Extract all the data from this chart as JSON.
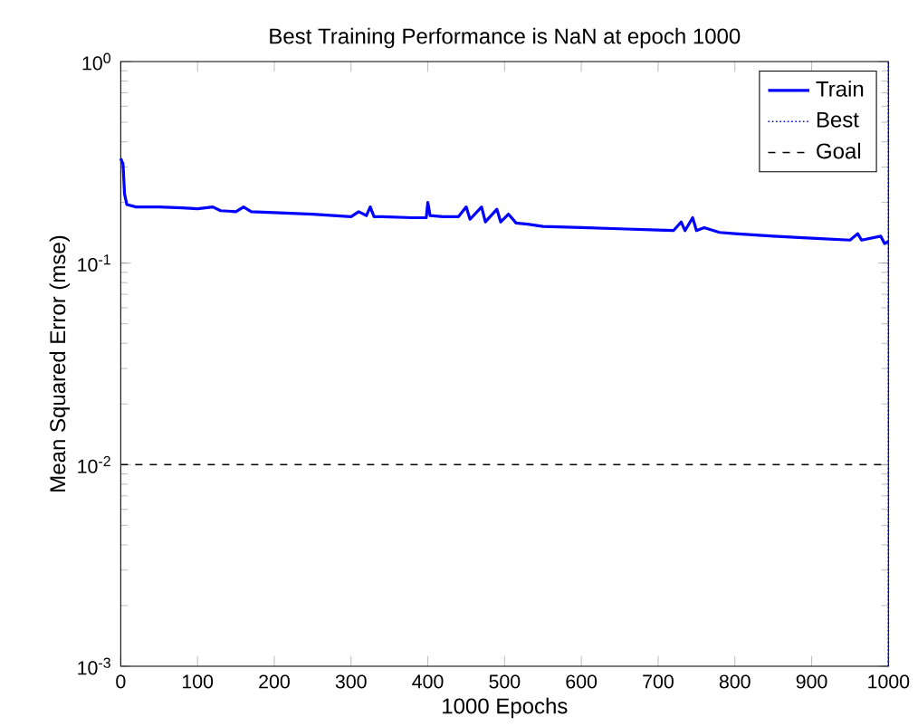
{
  "chart_data": {
    "type": "line",
    "title": "Best Training Performance is NaN at epoch 1000",
    "xlabel": "1000 Epochs",
    "ylabel": "Mean Squared Error  (mse)",
    "xlim": [
      0,
      1000
    ],
    "xticks": [
      0,
      100,
      200,
      300,
      400,
      500,
      600,
      700,
      800,
      900,
      1000
    ],
    "ylim": [
      0.001,
      1
    ],
    "yticks": [
      {
        "value": 0.001,
        "label": "10$^{-3}$"
      },
      {
        "value": 0.01,
        "label": "10$^{-2}$"
      },
      {
        "value": 0.1,
        "label": "10$^{-1}$"
      },
      {
        "value": 1,
        "label": "10$^{0}$"
      }
    ],
    "log": "y",
    "legend": "top right",
    "grid": false,
    "series": [
      {
        "name": "Train",
        "color": "#0000ff",
        "line_style": "solid",
        "x": [
          0,
          3,
          5,
          8,
          20,
          50,
          80,
          100,
          120,
          130,
          150,
          160,
          170,
          200,
          250,
          300,
          310,
          320,
          325,
          330,
          340,
          380,
          398,
          400,
          403,
          420,
          440,
          450,
          455,
          470,
          475,
          490,
          495,
          505,
          515,
          530,
          550,
          600,
          650,
          700,
          720,
          730,
          735,
          745,
          750,
          760,
          780,
          800,
          850,
          900,
          950,
          960,
          965,
          990,
          995,
          1000
        ],
        "values": [
          0.33,
          0.31,
          0.22,
          0.195,
          0.19,
          0.19,
          0.188,
          0.186,
          0.19,
          0.182,
          0.18,
          0.19,
          0.18,
          0.178,
          0.175,
          0.17,
          0.18,
          0.172,
          0.19,
          0.17,
          0.17,
          0.168,
          0.168,
          0.2,
          0.172,
          0.17,
          0.17,
          0.19,
          0.165,
          0.19,
          0.16,
          0.185,
          0.16,
          0.175,
          0.158,
          0.156,
          0.152,
          0.15,
          0.148,
          0.146,
          0.145,
          0.16,
          0.145,
          0.168,
          0.145,
          0.15,
          0.142,
          0.14,
          0.136,
          0.133,
          0.13,
          0.14,
          0.13,
          0.136,
          0.125,
          0.128
        ]
      },
      {
        "name": "Best",
        "color": "#0000ff",
        "line_style": "dotted",
        "x": [
          1000,
          1000
        ],
        "values": [
          0.001,
          1
        ]
      },
      {
        "name": "Goal",
        "color": "#000000",
        "line_style": "dashed",
        "x": [
          0,
          1000
        ],
        "values": [
          0.01,
          0.01
        ]
      }
    ]
  }
}
